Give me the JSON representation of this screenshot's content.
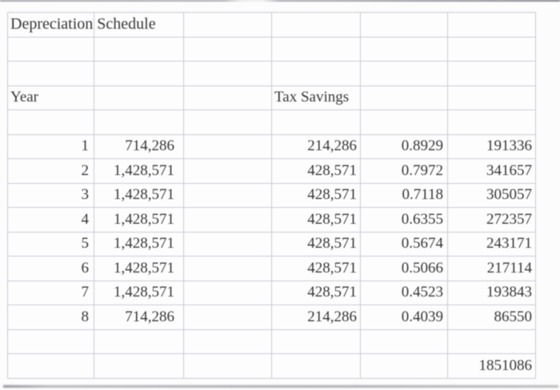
{
  "sheet": {
    "title": "Depreciation Schedule",
    "headers": {
      "year": "Year",
      "tax_savings": "Tax Savings"
    },
    "rows": [
      {
        "year": "1",
        "depreciation": "714,286",
        "tax_savings": "214,286",
        "discount_factor": "0.8929",
        "present_value": "191336"
      },
      {
        "year": "2",
        "depreciation": "1,428,571",
        "tax_savings": "428,571",
        "discount_factor": "0.7972",
        "present_value": "341657"
      },
      {
        "year": "3",
        "depreciation": "1,428,571",
        "tax_savings": "428,571",
        "discount_factor": "0.7118",
        "present_value": "305057"
      },
      {
        "year": "4",
        "depreciation": "1,428,571",
        "tax_savings": "428,571",
        "discount_factor": "0.6355",
        "present_value": "272357"
      },
      {
        "year": "5",
        "depreciation": "1,428,571",
        "tax_savings": "428,571",
        "discount_factor": "0.5674",
        "present_value": "243171"
      },
      {
        "year": "6",
        "depreciation": "1,428,571",
        "tax_savings": "428,571",
        "discount_factor": "0.5066",
        "present_value": "217114"
      },
      {
        "year": "7",
        "depreciation": "1,428,571",
        "tax_savings": "428,571",
        "discount_factor": "0.4523",
        "present_value": "193843"
      },
      {
        "year": "8",
        "depreciation": "714,286",
        "tax_savings": "214,286",
        "discount_factor": "0.4039",
        "present_value": "86550"
      }
    ],
    "total_present_value": "1851086"
  },
  "colors": {
    "gridline": "#c9c9d8",
    "text": "#38383a",
    "background": "#fcfcfc",
    "edge_artifact": "#91919a"
  }
}
